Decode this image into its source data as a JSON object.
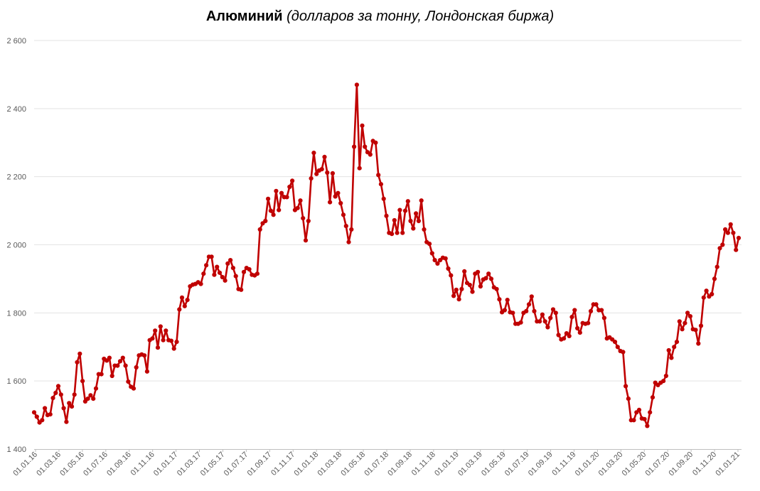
{
  "chart_data": {
    "type": "line",
    "title": "Алюминий",
    "subtitle": "(долларов за тонну, Лондонская биржа)",
    "xlabel": "",
    "ylabel": "",
    "ylim": [
      1400,
      2600
    ],
    "yticks": [
      1400,
      1600,
      1800,
      2000,
      2200,
      2400,
      2600
    ],
    "ytick_labels": [
      "1 400",
      "1 600",
      "1 800",
      "2 000",
      "2 200",
      "2 400",
      "2 600"
    ],
    "xtick_labels": [
      "01.01.16",
      "01.03.16",
      "01.05.16",
      "01.07.16",
      "01.09.16",
      "01.11.16",
      "01.01.17",
      "01.03.17",
      "01.05.17",
      "01.07.17",
      "01.09.17",
      "01.11.17",
      "01.01.18",
      "01.03.18",
      "01.05.18",
      "01.07.18",
      "01.09.18",
      "01.11.18",
      "01.01.19",
      "01.03.19",
      "01.05.19",
      "01.07.19",
      "01.09.19",
      "01.11.19",
      "01.01.20",
      "01.03.20",
      "01.05.20",
      "01.07.20",
      "01.09.20",
      "01.11.20",
      "01.01.21"
    ],
    "grid": true,
    "legend": "none",
    "series_color": "#C00000",
    "series": [
      {
        "values": [
          1508,
          1495,
          1478,
          1485,
          1520,
          1500,
          1502,
          1550,
          1565,
          1585,
          1560,
          1520,
          1480,
          1535,
          1525,
          1560,
          1655,
          1680,
          1600,
          1540,
          1548,
          1558,
          1548,
          1578,
          1620,
          1620,
          1665,
          1660,
          1668,
          1615,
          1645,
          1645,
          1658,
          1668,
          1645,
          1598,
          1583,
          1578,
          1640,
          1675,
          1678,
          1675,
          1628,
          1720,
          1725,
          1748,
          1698,
          1760,
          1720,
          1748,
          1720,
          1718,
          1695,
          1715,
          1810,
          1845,
          1820,
          1838,
          1878,
          1883,
          1885,
          1890,
          1885,
          1915,
          1940,
          1965,
          1965,
          1912,
          1935,
          1918,
          1905,
          1895,
          1945,
          1955,
          1932,
          1908,
          1870,
          1868,
          1920,
          1932,
          1928,
          1912,
          1910,
          1915,
          2045,
          2063,
          2070,
          2135,
          2100,
          2088,
          2158,
          2102,
          2152,
          2140,
          2140,
          2170,
          2188,
          2102,
          2108,
          2130,
          2078,
          2013,
          2070,
          2195,
          2270,
          2208,
          2218,
          2222,
          2258,
          2212,
          2125,
          2210,
          2142,
          2152,
          2122,
          2088,
          2055,
          2008,
          2045,
          2288,
          2470,
          2225,
          2350,
          2288,
          2272,
          2265,
          2305,
          2300,
          2205,
          2178,
          2135,
          2085,
          2035,
          2032,
          2072,
          2035,
          2102,
          2035,
          2100,
          2128,
          2070,
          2048,
          2092,
          2070,
          2130,
          2045,
          2008,
          2003,
          1975,
          1955,
          1945,
          1955,
          1962,
          1960,
          1930,
          1910,
          1850,
          1868,
          1840,
          1870,
          1922,
          1888,
          1882,
          1862,
          1915,
          1920,
          1878,
          1898,
          1902,
          1915,
          1900,
          1875,
          1870,
          1840,
          1802,
          1808,
          1838,
          1802,
          1800,
          1768,
          1768,
          1772,
          1800,
          1805,
          1825,
          1848,
          1805,
          1775,
          1775,
          1795,
          1775,
          1758,
          1785,
          1810,
          1800,
          1735,
          1722,
          1725,
          1740,
          1732,
          1788,
          1808,
          1755,
          1742,
          1770,
          1768,
          1770,
          1805,
          1825,
          1825,
          1808,
          1808,
          1785,
          1725,
          1728,
          1722,
          1715,
          1700,
          1688,
          1685,
          1585,
          1548,
          1485,
          1485,
          1508,
          1515,
          1490,
          1488,
          1468,
          1508,
          1552,
          1595,
          1588,
          1595,
          1600,
          1615,
          1690,
          1668,
          1700,
          1715,
          1775,
          1752,
          1770,
          1800,
          1790,
          1752,
          1750,
          1710,
          1762,
          1845,
          1865,
          1848,
          1855,
          1900,
          1935,
          1990,
          2000,
          2045,
          2035,
          2060,
          2035,
          1985,
          2020
        ]
      }
    ]
  }
}
